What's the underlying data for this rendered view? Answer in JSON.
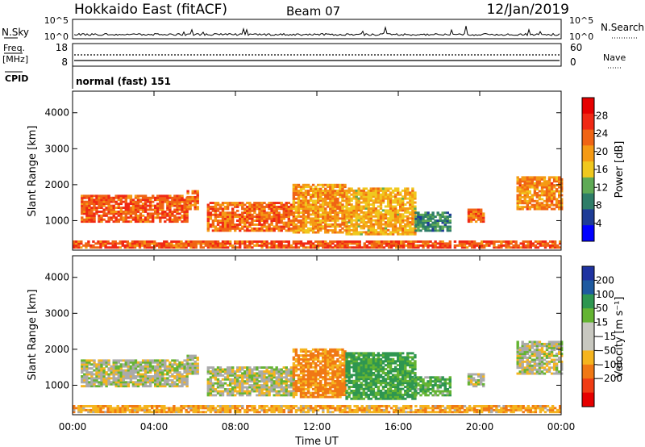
{
  "header": {
    "title": "Hokkaido East (fitACF)",
    "beam": "Beam 07",
    "date": "12/Jan/2019"
  },
  "strip": {
    "nsky_label": "N.Sky",
    "nsky_ticks": [
      "10^5",
      "10^0"
    ],
    "nsearch_label": "N.Search",
    "nsearch_ticks": [
      "10^5",
      "10^0"
    ],
    "freq_label_1": "Freq.",
    "freq_label_2": "[MHz]",
    "freq_ticks": [
      "18",
      "8"
    ],
    "nave_label": "Nave",
    "nave_ticks": [
      "60",
      "0"
    ],
    "cpid_label": "CPID",
    "cpid_value": "normal (fast) 151"
  },
  "colors": {
    "power_scale": [
      "#0000ff",
      "#1e3c96",
      "#2e7d68",
      "#5faa55",
      "#f0c81e",
      "#f59a14",
      "#f06414",
      "#f02814",
      "#e60000"
    ],
    "velocity_scale": [
      "#e60000",
      "#f03c14",
      "#f07814",
      "#f5b41e",
      "#c8c8c0",
      "#c8c8c0",
      "#64b432",
      "#2e9650",
      "#1e5aa0",
      "#1e32a0"
    ],
    "ground": "#aaaaaa"
  },
  "chart_data": [
    {
      "type": "heatmap",
      "name": "power",
      "ylabel": "Slant Range [km]",
      "xlabel": "Time UT",
      "x_ticks": [
        "00:00",
        "04:00",
        "08:00",
        "12:00",
        "16:00",
        "20:00",
        "00:00"
      ],
      "xlim": [
        0,
        24
      ],
      "ylim": [
        180,
        4600
      ],
      "y_ticks": [
        1000,
        2000,
        3000,
        4000
      ],
      "colorbar": {
        "label": "Power [dB]",
        "ticks": [
          4,
          8,
          12,
          16,
          20,
          24,
          28
        ],
        "range": [
          0,
          32
        ]
      },
      "regions": [
        {
          "t": [
            0.4,
            5.6
          ],
          "r": [
            950,
            1720
          ],
          "level": 28
        },
        {
          "t": [
            5.6,
            6.1
          ],
          "r": [
            1300,
            1800
          ],
          "level": 26
        },
        {
          "t": [
            6.6,
            10.8
          ],
          "r": [
            700,
            1500
          ],
          "level": 27
        },
        {
          "t": [
            10.8,
            13.4
          ],
          "r": [
            650,
            2000
          ],
          "level": 24
        },
        {
          "t": [
            13.4,
            16.8
          ],
          "r": [
            600,
            1900
          ],
          "level": 22
        },
        {
          "t": [
            16.8,
            18.6
          ],
          "r": [
            700,
            1200
          ],
          "level": 14
        },
        {
          "t": [
            19.4,
            20.2
          ],
          "r": [
            950,
            1300
          ],
          "level": 26
        },
        {
          "t": [
            21.8,
            24.0
          ],
          "r": [
            1300,
            2200
          ],
          "level": 25
        },
        {
          "t": [
            0.0,
            24.0
          ],
          "r": [
            230,
            420
          ],
          "level": 28
        }
      ]
    },
    {
      "type": "heatmap",
      "name": "velocity",
      "ylabel": "Slant Range [km]",
      "xlabel": "Time UT",
      "x_ticks": [
        "00:00",
        "04:00",
        "08:00",
        "12:00",
        "16:00",
        "20:00",
        "00:00"
      ],
      "xlim": [
        0,
        24
      ],
      "ylim": [
        180,
        4600
      ],
      "y_ticks": [
        1000,
        2000,
        3000,
        4000
      ],
      "colorbar": {
        "label": "Velocity [m s⁻¹]",
        "ticks": [
          "200",
          "100",
          "50",
          "15",
          "−15",
          "−50",
          "−100",
          "−200"
        ]
      },
      "regions": [
        {
          "t": [
            0.4,
            5.6
          ],
          "r": [
            950,
            1720
          ],
          "vel": 0
        },
        {
          "t": [
            5.6,
            6.1
          ],
          "r": [
            1300,
            1800
          ],
          "vel": 0
        },
        {
          "t": [
            6.6,
            10.8
          ],
          "r": [
            700,
            1500
          ],
          "vel": 0
        },
        {
          "t": [
            10.8,
            13.4
          ],
          "r": [
            650,
            2000
          ],
          "vel": -60
        },
        {
          "t": [
            13.4,
            16.8
          ],
          "r": [
            600,
            1900
          ],
          "vel": 60
        },
        {
          "t": [
            16.8,
            18.6
          ],
          "r": [
            700,
            1200
          ],
          "vel": 40
        },
        {
          "t": [
            19.4,
            20.2
          ],
          "r": [
            950,
            1300
          ],
          "vel": 0
        },
        {
          "t": [
            21.8,
            24.0
          ],
          "r": [
            1300,
            2200
          ],
          "vel": 0
        },
        {
          "t": [
            0.0,
            24.0
          ],
          "r": [
            230,
            420
          ],
          "vel": -40
        }
      ]
    }
  ]
}
